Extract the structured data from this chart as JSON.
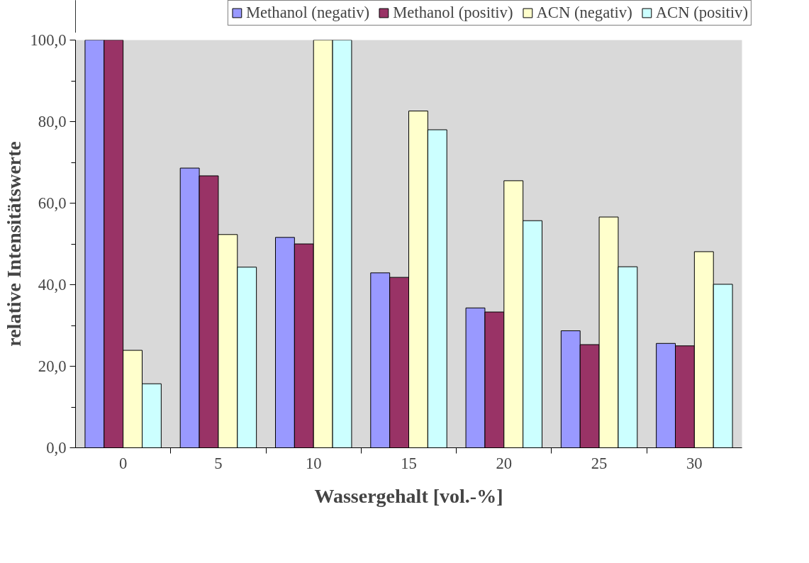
{
  "chart_data": {
    "type": "bar",
    "xlabel": "Wassergehalt [vol.-%]",
    "ylabel": "relative Intensitätswerte",
    "categories": [
      "0",
      "5",
      "10",
      "15",
      "20",
      "25",
      "30"
    ],
    "series": [
      {
        "name": "Methanol (negativ)",
        "color": "#9999ff",
        "values": [
          100,
          68.6,
          51.6,
          42.9,
          34.3,
          28.7,
          25.6
        ]
      },
      {
        "name": "Methanol (positiv)",
        "color": "#993366",
        "values": [
          100,
          66.7,
          50.0,
          41.8,
          33.3,
          25.3,
          25.0
        ]
      },
      {
        "name": "ACN (negativ)",
        "color": "#ffffcc",
        "values": [
          23.9,
          52.3,
          100,
          82.6,
          65.5,
          56.6,
          48.1
        ]
      },
      {
        "name": "ACN (positiv)",
        "color": "#ccffff",
        "values": [
          15.7,
          44.3,
          100,
          78.0,
          55.7,
          44.4,
          40.1
        ]
      }
    ],
    "ylim": [
      0,
      100
    ],
    "yticks": [
      {
        "value": 0,
        "label": "0,0"
      },
      {
        "value": 20,
        "label": "20,0"
      },
      {
        "value": 40,
        "label": "40,0"
      },
      {
        "value": 60,
        "label": "60,0"
      },
      {
        "value": 80,
        "label": "80,0"
      },
      {
        "value": 100,
        "label": "100,0"
      }
    ],
    "grid": false,
    "legend": "top"
  }
}
